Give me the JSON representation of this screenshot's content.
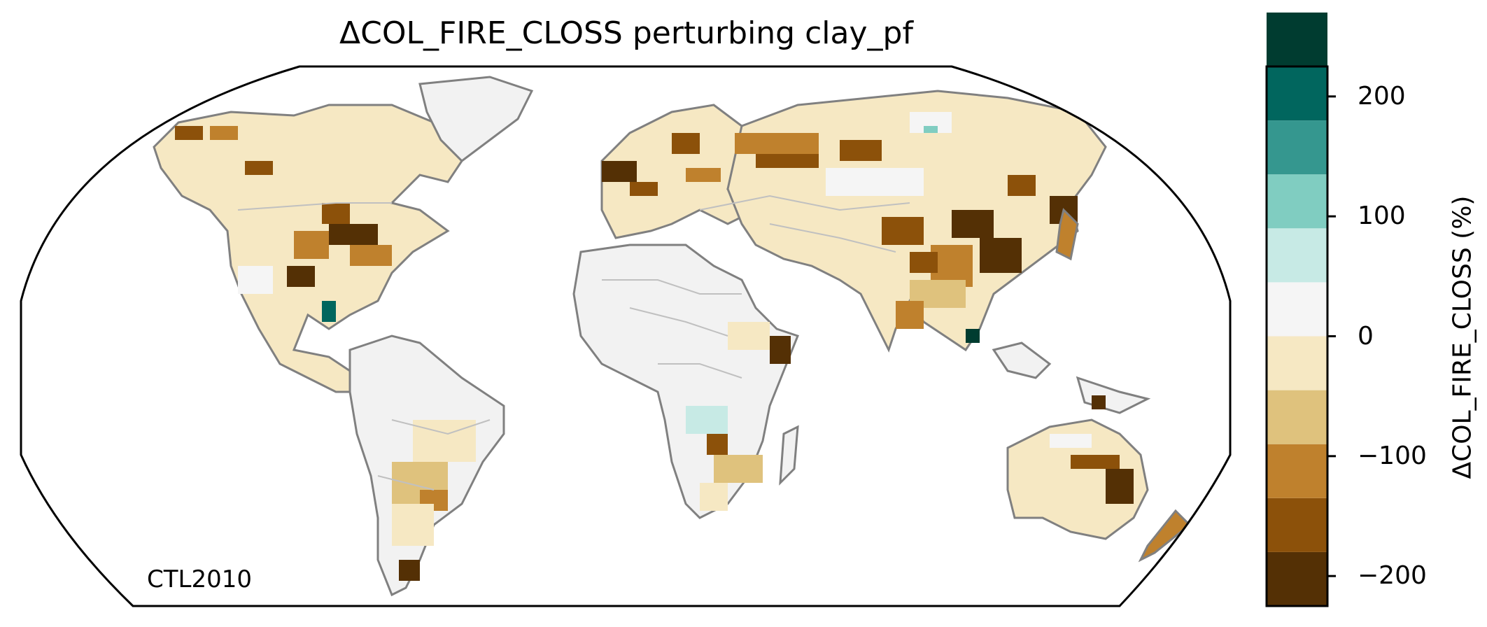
{
  "title": "ΔCOL_FIRE_CLOSS perturbing clay_pf",
  "run_label": "CTL2010",
  "colorbar": {
    "label": "ΔCOL_FIRE_CLOSS (%)",
    "range": [
      -225,
      225
    ],
    "step": 45,
    "ticks": [
      {
        "value": 200,
        "text": "200"
      },
      {
        "value": 100,
        "text": "100"
      },
      {
        "value": 0,
        "text": "0"
      },
      {
        "value": -100,
        "text": "−100"
      },
      {
        "value": -200,
        "text": "−200"
      }
    ],
    "colors": [
      "#543005",
      "#8c510a",
      "#bf812d",
      "#dfc27d",
      "#f6e8c3",
      "#f5f5f5",
      "#c7eae5",
      "#80cdc1",
      "#35978f",
      "#01665e",
      "#003c30"
    ]
  },
  "map": {
    "projection": "Robinson",
    "palette_note": "BrBG diverging",
    "land_color": "#f2f2f2",
    "coast_color": "#808080",
    "border_color": "#c0c0c0"
  }
}
